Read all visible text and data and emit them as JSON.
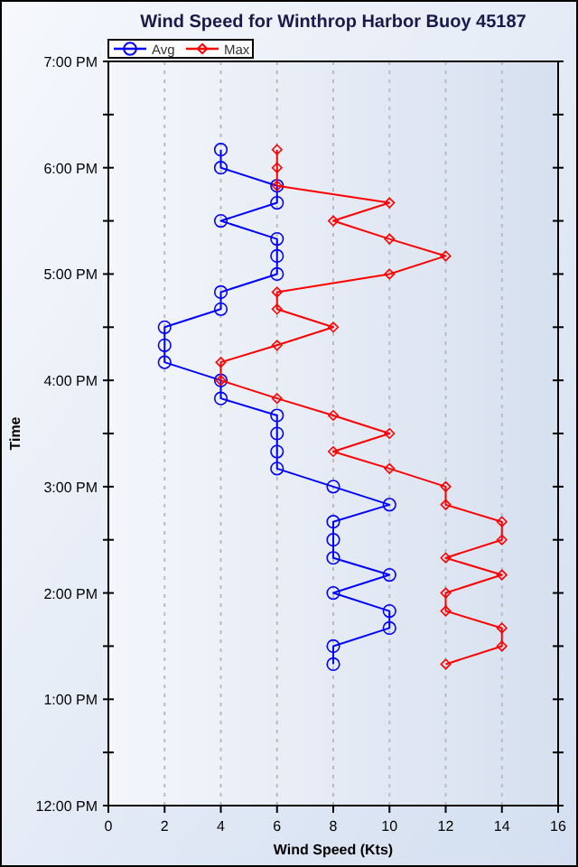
{
  "chart_data": {
    "type": "line",
    "title": "Wind Speed for Winthrop Harbor Buoy 45187",
    "xlabel": "Wind Speed (Kts)",
    "ylabel": "Time",
    "xlim": [
      0,
      16
    ],
    "xticks": [
      0,
      2,
      4,
      6,
      8,
      10,
      12,
      14,
      16
    ],
    "ylim": [
      12,
      19
    ],
    "yticks": [
      {
        "value": 12,
        "label": "12:00 PM"
      },
      {
        "value": 12.5,
        "label": null
      },
      {
        "value": 13,
        "label": "1:00 PM"
      },
      {
        "value": 13.5,
        "label": null
      },
      {
        "value": 14,
        "label": "2:00 PM"
      },
      {
        "value": 14.5,
        "label": null
      },
      {
        "value": 15,
        "label": "3:00 PM"
      },
      {
        "value": 15.5,
        "label": null
      },
      {
        "value": 16,
        "label": "4:00 PM"
      },
      {
        "value": 16.5,
        "label": null
      },
      {
        "value": 17,
        "label": "5:00 PM"
      },
      {
        "value": 17.5,
        "label": null
      },
      {
        "value": 18,
        "label": "6:00 PM"
      },
      {
        "value": 18.5,
        "label": null
      },
      {
        "value": 19,
        "label": "7:00 PM"
      }
    ],
    "grid": "x",
    "legend": "top left",
    "line_style": "solid",
    "series": [
      {
        "name": "Avg",
        "color": "#0000ff",
        "marker": "circle",
        "x": [
          4,
          4,
          6,
          6,
          4,
          6,
          6,
          6,
          4,
          4,
          2,
          2,
          2,
          4,
          4,
          6,
          6,
          6,
          6,
          8,
          10,
          8,
          8,
          8,
          10,
          8,
          10,
          10,
          8,
          8
        ],
        "values": [
          18.17,
          18,
          17.83,
          17.67,
          17.5,
          17.33,
          17.17,
          17,
          16.83,
          16.67,
          16.5,
          16.33,
          16.17,
          16,
          15.83,
          15.67,
          15.5,
          15.33,
          15.17,
          15,
          14.83,
          14.67,
          14.5,
          14.33,
          14.17,
          14,
          13.83,
          13.67,
          13.5,
          13.33
        ]
      },
      {
        "name": "Max",
        "color": "#ff0000",
        "marker": "diamond",
        "x": [
          6,
          6,
          6,
          10,
          8,
          10,
          12,
          10,
          6,
          6,
          8,
          6,
          4,
          4,
          6,
          8,
          10,
          8,
          10,
          12,
          12,
          14,
          14,
          12,
          14,
          12,
          12,
          14,
          14,
          12
        ],
        "values": [
          18.17,
          18,
          17.83,
          17.67,
          17.5,
          17.33,
          17.17,
          17,
          16.83,
          16.67,
          16.5,
          16.33,
          16.17,
          16,
          15.83,
          15.67,
          15.5,
          15.33,
          15.17,
          15,
          14.83,
          14.67,
          14.5,
          14.33,
          14.17,
          14,
          13.83,
          13.67,
          13.5,
          13.33
        ]
      }
    ]
  }
}
